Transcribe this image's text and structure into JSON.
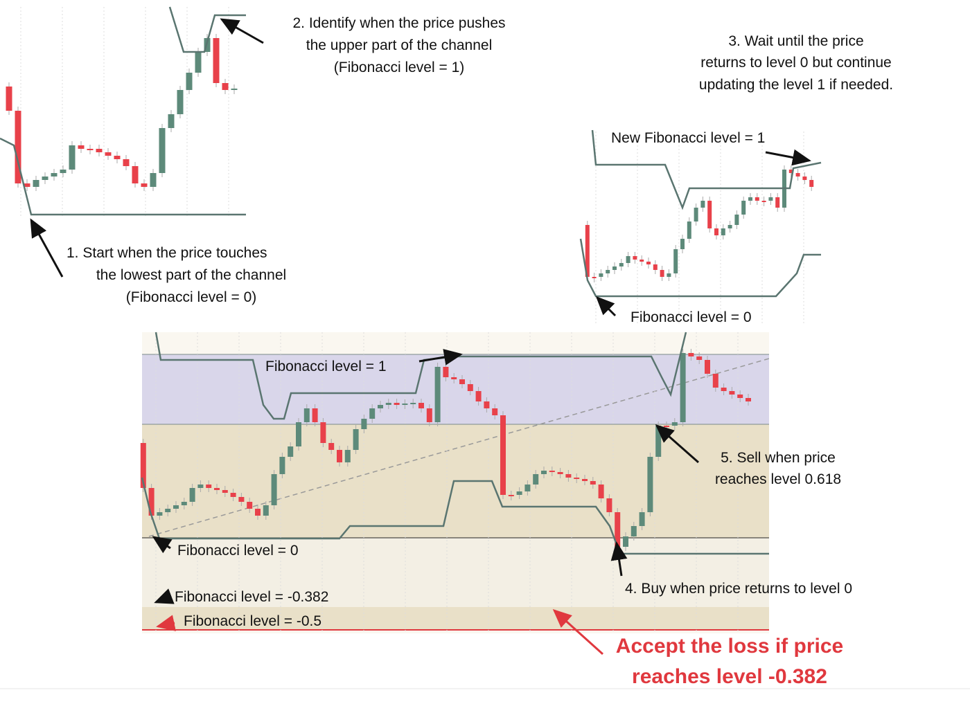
{
  "annotations": {
    "step2": [
      "2. Identify when the price pushes",
      "the upper part of the channel",
      "(Fibonacci level = 1)"
    ],
    "step3": [
      "3. Wait until the price",
      "returns to level 0 but continue",
      "updating the level 1 if needed."
    ],
    "new_level_1": "New Fibonacci level = 1",
    "step1": [
      "1.    Start when the price touches",
      "the lowest part of the channel",
      "(Fibonacci level = 0)"
    ],
    "small_level_0": "Fibonacci level = 0",
    "main_level_1": "Fibonacci level = 1",
    "main_level_0": "Fibonacci level = 0",
    "step5": [
      "5. Sell when price",
      "reaches level 0.618"
    ],
    "step4": "4. Buy when price returns to level 0",
    "level_m0382": "Fibonacci level = -0.382",
    "level_m05": "Fibonacci level = -0.5",
    "loss": [
      "Accept the loss if price",
      "reaches level -0.382"
    ]
  }
}
